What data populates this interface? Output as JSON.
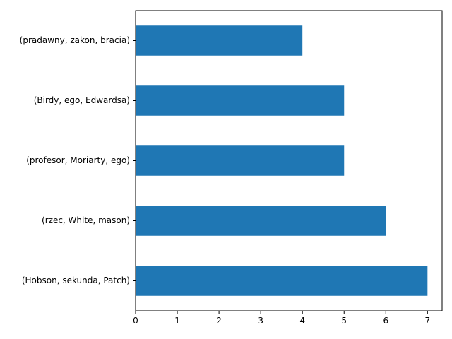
{
  "chart_data": {
    "type": "bar",
    "orientation": "horizontal",
    "categories": [
      "(Hobson, sekunda, Patch)",
      "(rzec, White, mason)",
      "(profesor, Moriarty, ego)",
      "(Birdy, ego, Edwardsa)",
      "(pradawny, zakon, bracia)"
    ],
    "values": [
      7,
      6,
      5,
      5,
      4
    ],
    "xlim": [
      0,
      7.35
    ],
    "xticks": [
      0,
      1,
      2,
      3,
      4,
      5,
      6,
      7
    ],
    "title": "",
    "xlabel": "",
    "ylabel": "",
    "grid": false,
    "bar_color": "#1f77b4"
  }
}
